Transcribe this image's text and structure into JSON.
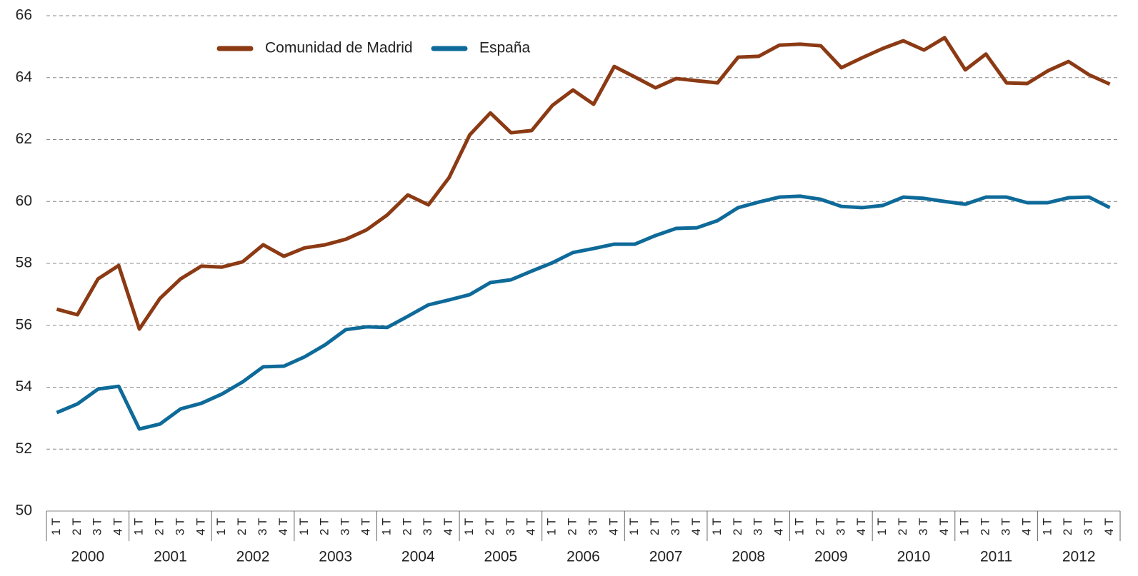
{
  "chart_data": {
    "type": "line",
    "categories": [
      "1 T",
      "2 T",
      "3 T",
      "4 T",
      "1 T",
      "2 T",
      "3 T",
      "4 T",
      "1 T",
      "2 T",
      "3 T",
      "4 T",
      "1 T",
      "2 T",
      "3 T",
      "4 T",
      "1 T",
      "2 T",
      "3 T",
      "4 T",
      "1 T",
      "2 T",
      "3 T",
      "4 T",
      "1 T",
      "2 T",
      "3 T",
      "4 T",
      "1 T",
      "2 T",
      "3 T",
      "4 T",
      "1 T",
      "2 T",
      "3 T",
      "4 T",
      "1 T",
      "2 T",
      "3 T",
      "4 T",
      "1 T",
      "2 T",
      "3 T",
      "4 T",
      "1 T",
      "2 T",
      "3 T",
      "4 T",
      "1 T",
      "2 T",
      "3 T",
      "4 T"
    ],
    "years": [
      "2000",
      "2001",
      "2002",
      "2003",
      "2004",
      "2005",
      "2006",
      "2007",
      "2008",
      "2009",
      "2010",
      "2011",
      "2012"
    ],
    "series": [
      {
        "name": "Comunidad de Madrid",
        "color": "#8b3a14",
        "values": [
          56.52,
          56.34,
          57.5,
          57.93,
          55.88,
          56.87,
          57.5,
          57.91,
          57.88,
          58.05,
          58.6,
          58.23,
          58.5,
          58.6,
          58.78,
          59.08,
          59.56,
          60.21,
          59.89,
          60.77,
          62.15,
          62.86,
          62.22,
          62.29,
          63.1,
          63.6,
          63.14,
          64.36,
          64.02,
          63.67,
          63.97,
          63.9,
          63.83,
          64.66,
          64.69,
          65.05,
          65.08,
          65.03,
          64.32,
          64.64,
          64.94,
          65.19,
          64.89,
          65.29,
          64.25,
          64.76,
          63.83,
          63.81,
          64.22,
          64.52,
          64.09,
          63.79
        ]
      },
      {
        "name": "España",
        "color": "#0e6a99",
        "values": [
          53.18,
          53.46,
          53.94,
          54.03,
          52.65,
          52.81,
          53.3,
          53.48,
          53.78,
          54.17,
          54.66,
          54.68,
          54.98,
          55.37,
          55.86,
          55.95,
          55.93,
          56.29,
          56.66,
          56.82,
          56.99,
          57.38,
          57.47,
          57.75,
          58.02,
          58.35,
          58.48,
          58.62,
          58.62,
          58.9,
          59.13,
          59.15,
          59.38,
          59.8,
          59.98,
          60.14,
          60.17,
          60.07,
          59.84,
          59.8,
          59.87,
          60.14,
          60.1,
          60.0,
          59.91,
          60.14,
          60.14,
          59.96,
          59.96,
          60.12,
          60.14,
          59.8
        ]
      }
    ],
    "ylim": [
      50,
      66
    ],
    "yticks": [
      50,
      52,
      54,
      56,
      58,
      60,
      62,
      64,
      66
    ],
    "grid": true
  }
}
